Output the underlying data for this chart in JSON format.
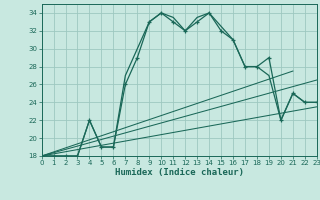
{
  "xlabel": "Humidex (Indice chaleur)",
  "bg_color": "#c8e8e0",
  "grid_color": "#9ec8c0",
  "line_color": "#1a6858",
  "xlim": [
    0,
    23
  ],
  "ylim": [
    18,
    35
  ],
  "xticks": [
    0,
    1,
    2,
    3,
    4,
    5,
    6,
    7,
    8,
    9,
    10,
    11,
    12,
    13,
    14,
    15,
    16,
    17,
    18,
    19,
    20,
    21,
    22,
    23
  ],
  "yticks": [
    18,
    20,
    22,
    24,
    26,
    28,
    30,
    32,
    34
  ],
  "curve_marked_x": [
    0,
    1,
    2,
    3,
    4,
    5,
    6,
    7,
    8,
    9,
    10,
    11,
    12,
    13,
    14,
    15,
    16,
    17,
    18,
    19,
    20,
    21,
    22,
    23
  ],
  "curve_marked_y": [
    18,
    18,
    18,
    18,
    22,
    19,
    19,
    26,
    29,
    33,
    34,
    33,
    32,
    33,
    34,
    32,
    31,
    28,
    28,
    29,
    22,
    25,
    24,
    24
  ],
  "curve_plain_x": [
    0,
    1,
    2,
    3,
    4,
    5,
    6,
    7,
    8,
    9,
    10,
    11,
    12,
    13,
    14,
    15,
    16,
    17,
    18,
    19,
    20,
    21,
    22,
    23
  ],
  "curve_plain_y": [
    18,
    18,
    18,
    18,
    22,
    19,
    19,
    27,
    30,
    33,
    34,
    33.5,
    32,
    33.5,
    34,
    32.5,
    31,
    28,
    28,
    27,
    22,
    25,
    24,
    24
  ],
  "ref_line1_x": [
    0,
    23
  ],
  "ref_line1_y": [
    18,
    23.5
  ],
  "ref_line2_x": [
    0,
    23
  ],
  "ref_line2_y": [
    18,
    26.5
  ],
  "ref_line3_x": [
    0,
    21
  ],
  "ref_line3_y": [
    18,
    27.5
  ]
}
